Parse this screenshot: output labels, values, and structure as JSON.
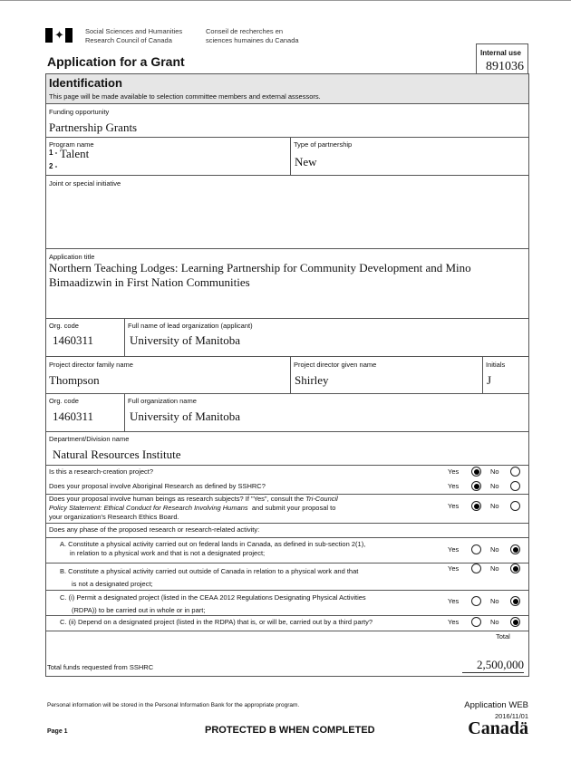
{
  "header": {
    "agency_en_1": "Social Sciences and Humanities",
    "agency_en_2": "Research Council of Canada",
    "agency_fr_1": "Conseil de recherches en",
    "agency_fr_2": "sciences humaines du Canada",
    "title": "Application for a Grant",
    "internal_use_label": "Internal use",
    "internal_use_value": "891036"
  },
  "section": {
    "title": "Identification",
    "note": "This page will be made available to selection committee members and external assessors."
  },
  "fields": {
    "funding_label": "Funding opportunity",
    "funding_value": "Partnership Grants",
    "program_label": "Program name",
    "program_1_num": "1 -",
    "program_1": "Talent",
    "program_2_num": "2 -",
    "partnership_label": "Type of partnership",
    "partnership_value": "New",
    "joint_label": "Joint or special initiative",
    "title_label": "Application title",
    "title_value": "Northern Teaching Lodges: Learning Partnership for Community Development and Mino Bimaadizwin in First Nation Communities",
    "org_code_label": "Org. code",
    "org_code_value": "1460311",
    "lead_org_label": "Full name of lead organization (applicant)",
    "lead_org_value": "University of Manitoba",
    "family_label": "Project director family name",
    "family_value": "Thompson",
    "given_label": "Project director given name",
    "given_value": "Shirley",
    "initials_label": "Initials",
    "initials_value": "J",
    "org_code2_label": "Org. code",
    "org_code2_value": "1460311",
    "org_name_label": "Full organization name",
    "org_name_value": "University of Manitoba",
    "dept_label": "Department/Division name",
    "dept_value": "Natural Resources Institute"
  },
  "questions": [
    {
      "text": "Is this a research-creation project?",
      "answer": "Yes"
    },
    {
      "text": "Does your proposal involve Aboriginal Research as defined by SSHRC?",
      "answer": "Yes"
    },
    {
      "text_a": "Does your proposal involve human beings as research subjects? If \"Yes\", consult the ",
      "text_i1": "Tri-Council",
      "text_i2": "Policy Statement: Ethical Conduct for Research Involving Humans",
      "text_b": "  and submit your proposal to",
      "text_c": "your organization's Research Ethics Board.",
      "answer": "Yes"
    },
    {
      "text": "Does any phase of the proposed research or research-related activity:"
    },
    {
      "line1": "A. Constitute a physical activity carried out on federal lands in Canada, as defined in sub-section 2(1),",
      "line2": "in relation to a physical work and that is not a designated project;",
      "answer": "No"
    },
    {
      "line1": "B. Constitute a physical activity carried out outside of Canada in relation to a physical work and that",
      "line2": "is not a designated project;",
      "answer": "No"
    },
    {
      "line1": "C. (i) Permit a designated project (listed in the CEAA 2012 Regulations Designating Physical Activities",
      "line2": "(RDPA)) to be carried out in whole or in part;",
      "answer": "No"
    },
    {
      "line1": "C. (ii) Depend on a designated project (listed in the RDPA) that is, or will be, carried out by a third party?",
      "answer": "No"
    }
  ],
  "yes_label": "Yes",
  "no_label": "No",
  "total": {
    "header": "Total",
    "label": "Total funds requested from SSHRC",
    "value": "2,500,000"
  },
  "footer": {
    "privacy": "Personal information will be stored in the Personal Information Bank for the appropriate program.",
    "page": "Page 1",
    "protected": "PROTECTED B WHEN COMPLETED",
    "app_web": "Application WEB",
    "date": "2016/11/01",
    "wordmark": "Canadä"
  }
}
